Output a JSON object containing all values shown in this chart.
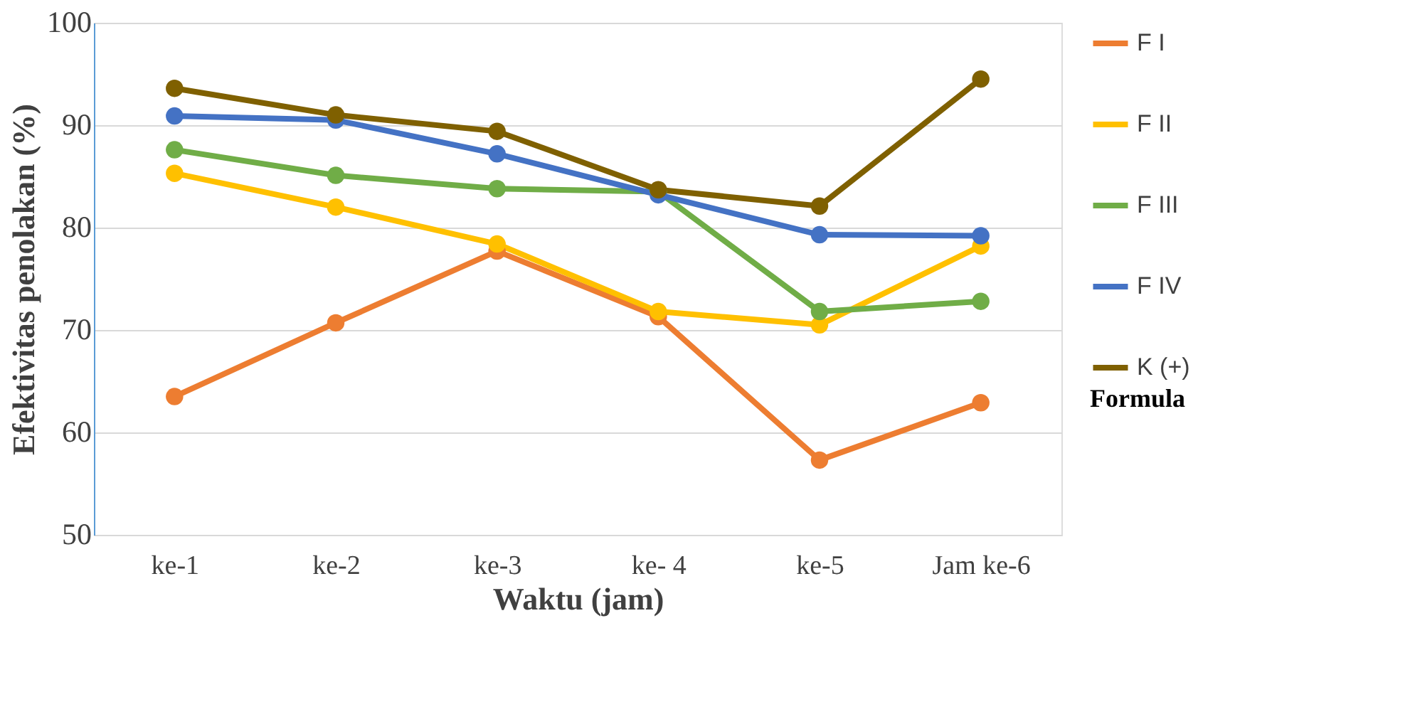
{
  "chart_data": {
    "type": "line",
    "xlabel": "Waktu (jam)",
    "ylabel": "Efektivitas penolakan (%)",
    "legend_title": "Formula",
    "categories": [
      "ke-1",
      "ke-2",
      "ke-3",
      "ke- 4",
      "ke-5",
      "Jam ke-6"
    ],
    "series": [
      {
        "name": "F I",
        "color": "#ed7d31",
        "values": [
          63.5,
          70.7,
          77.7,
          71.3,
          57.3,
          62.9
        ]
      },
      {
        "name": "F II",
        "color": "#ffc000",
        "values": [
          85.3,
          82.0,
          78.4,
          71.8,
          70.5,
          78.2
        ]
      },
      {
        "name": "F III",
        "color": "#70ad47",
        "values": [
          87.6,
          85.1,
          83.8,
          83.5,
          71.8,
          72.8
        ]
      },
      {
        "name": "F IV",
        "color": "#4472c4",
        "values": [
          90.9,
          90.5,
          87.2,
          83.2,
          79.3,
          79.2
        ]
      },
      {
        "name": "K (+)",
        "color": "#7f6000",
        "values": [
          93.6,
          91.0,
          89.4,
          83.7,
          82.1,
          94.5
        ]
      }
    ],
    "ylim": [
      50,
      100
    ],
    "yticks": [
      50,
      60,
      70,
      80,
      90,
      100
    ],
    "grid": "y",
    "legend": "right",
    "marker": "circle",
    "line_style": "solid"
  }
}
